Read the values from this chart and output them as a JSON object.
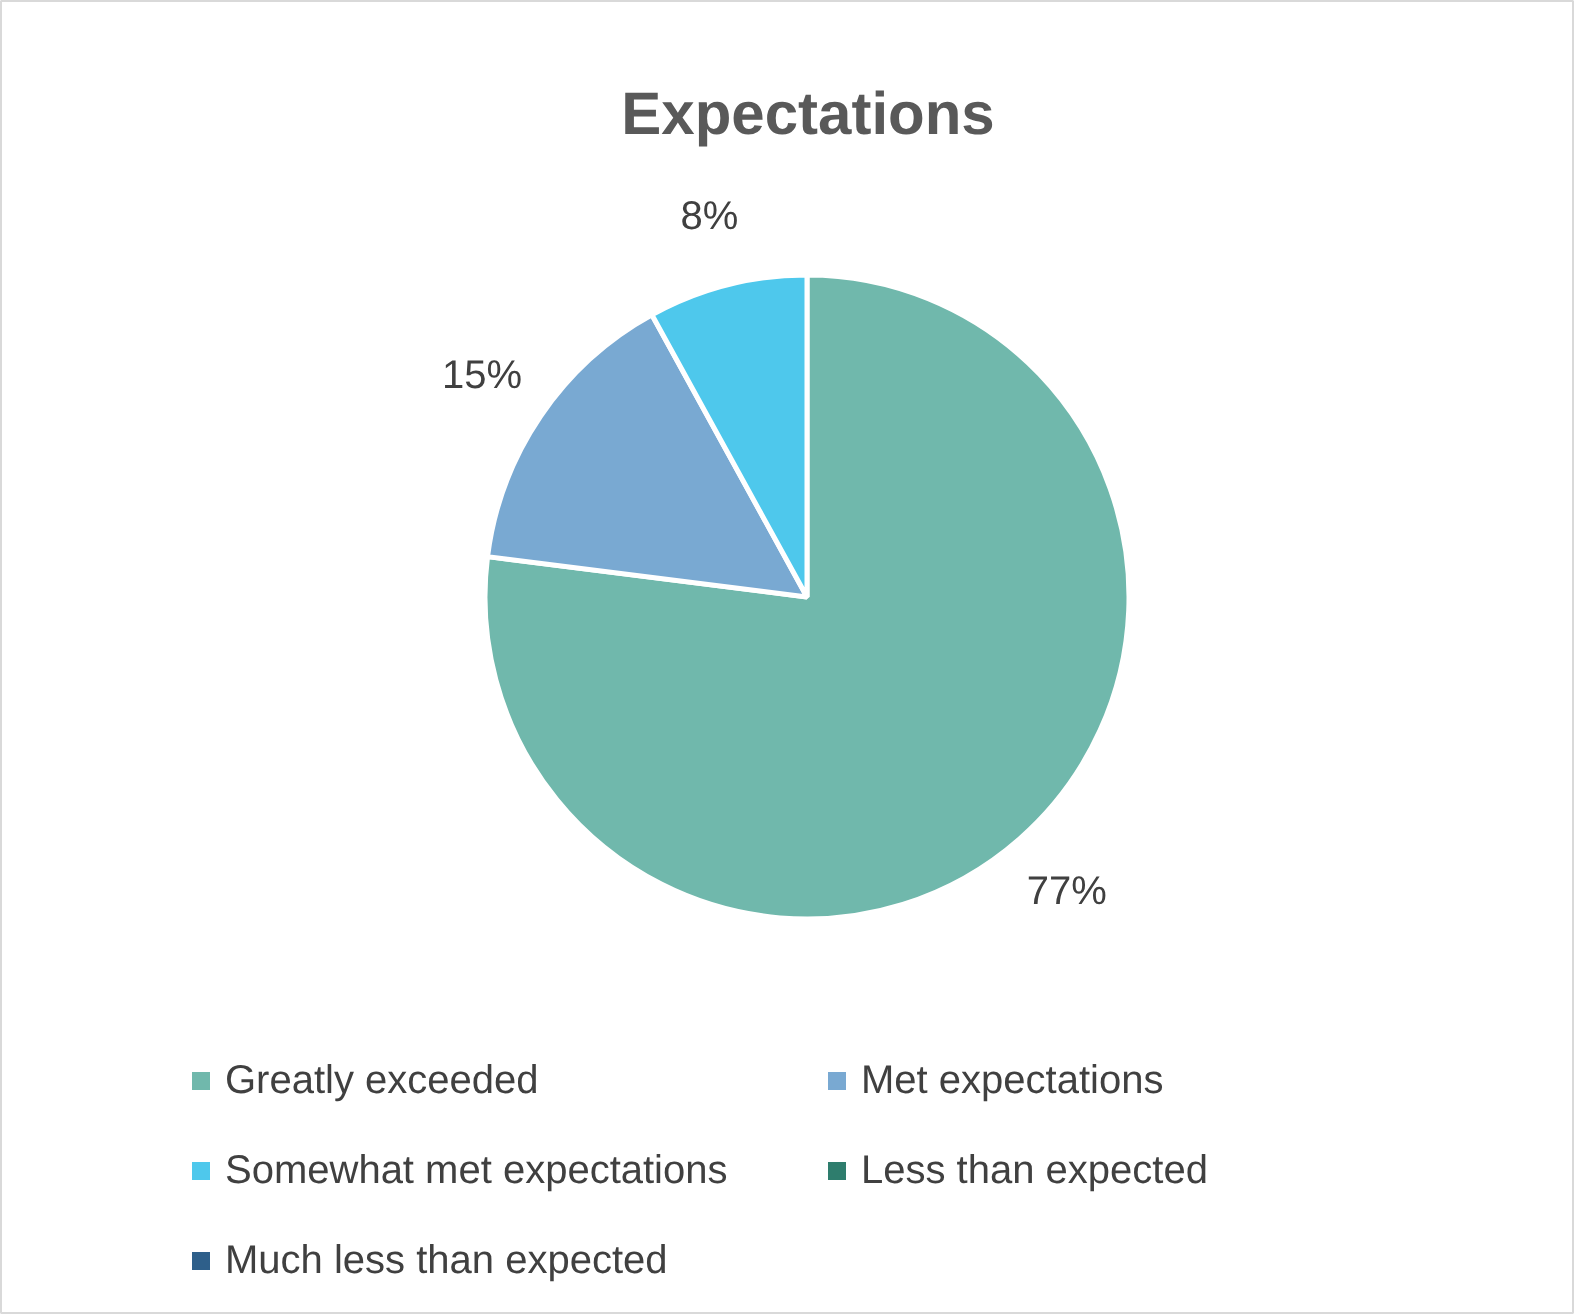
{
  "chart_data": {
    "type": "pie",
    "title": "Expectations",
    "categories": [
      "Greatly exceeded",
      "Met expectations",
      "Somewhat met expectations",
      "Less than expected",
      "Much less than expected"
    ],
    "values": [
      77,
      15,
      8,
      0,
      0
    ],
    "colors": [
      "#70b8ac",
      "#79a9d2",
      "#4ec8ec",
      "#2e7d6d",
      "#2e5f8a"
    ],
    "value_labels": [
      "77%",
      "15%",
      "8%",
      null,
      null
    ],
    "legend": "bottom"
  }
}
